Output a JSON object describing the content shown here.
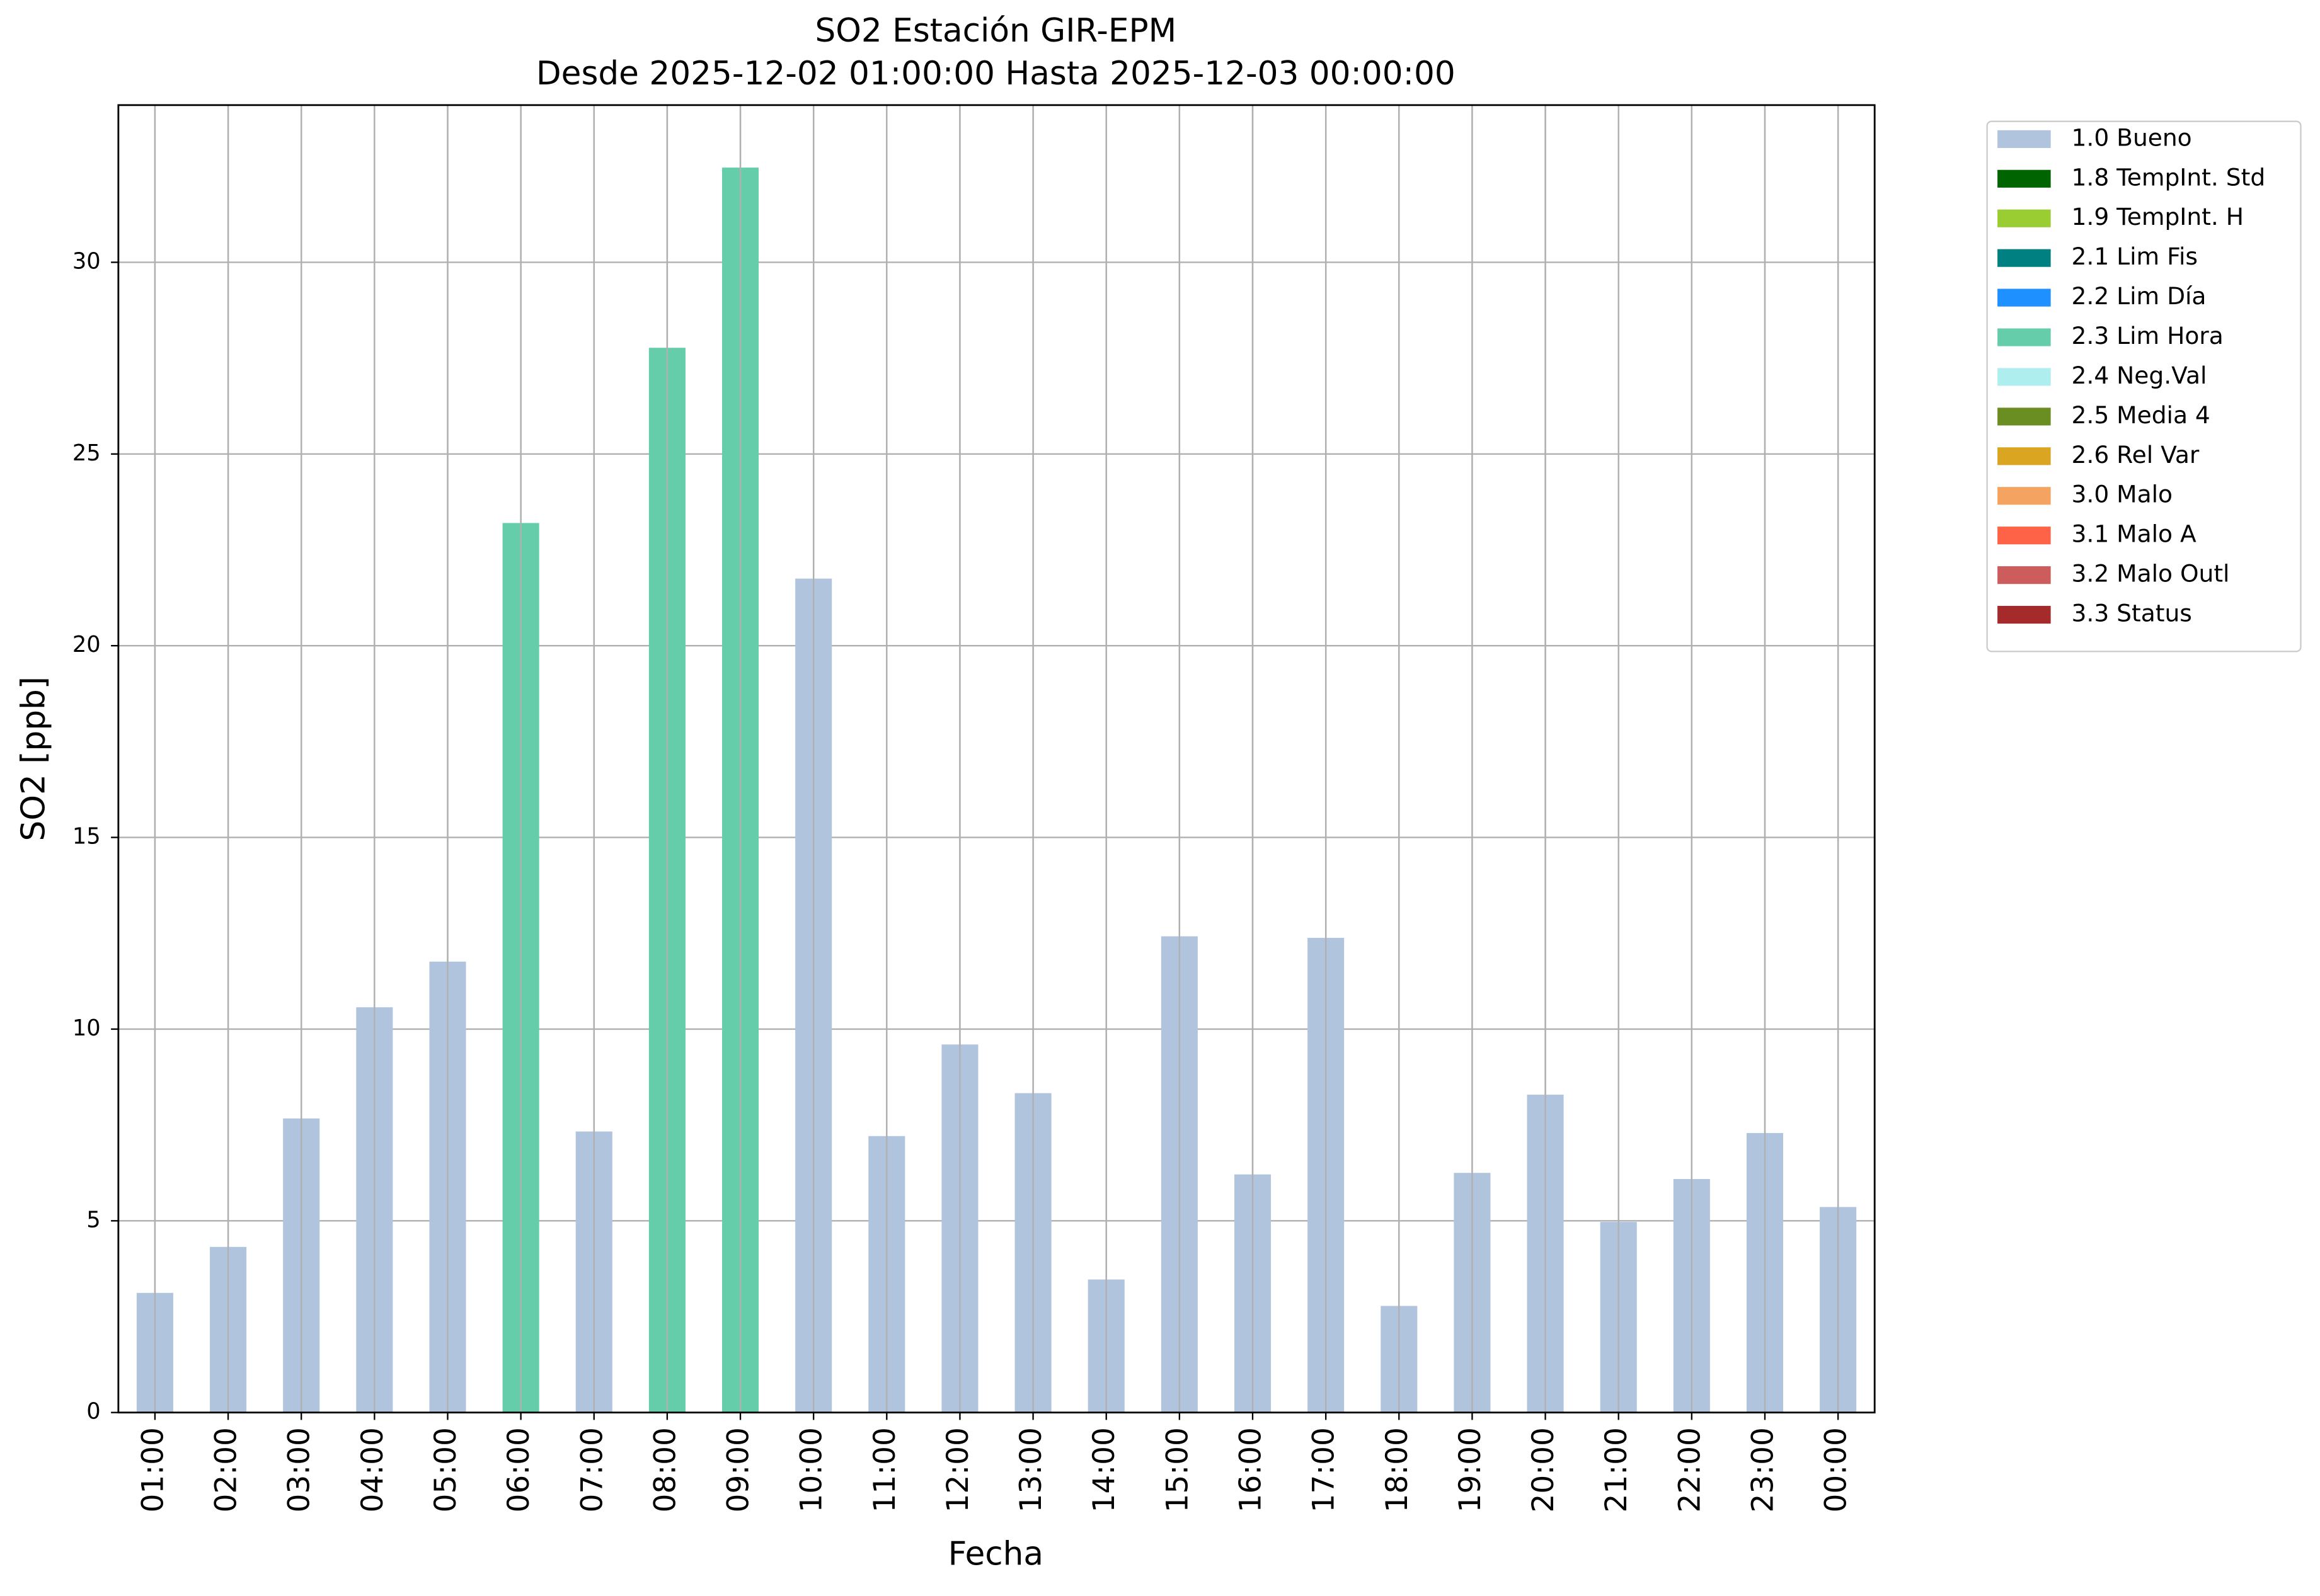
{
  "chart_data": {
    "type": "bar",
    "stacked": true,
    "title": "SO2 Estación GIR-EPM",
    "subtitle": "Desde 2025-12-02 01:00:00 Hasta 2025-12-03 00:00:00",
    "x_label": "Fecha",
    "y_label": "SO2 [ppb]",
    "categories": [
      "01:00",
      "02:00",
      "03:00",
      "04:00",
      "05:00",
      "06:00",
      "07:00",
      "08:00",
      "09:00",
      "10:00",
      "11:00",
      "12:00",
      "13:00",
      "14:00",
      "15:00",
      "16:00",
      "17:00",
      "18:00",
      "19:00",
      "20:00",
      "21:00",
      "22:00",
      "23:00",
      "00:00"
    ],
    "series": [
      {
        "name": "1.0 Bueno",
        "color": "#b0c4de",
        "values": [
          3.12,
          4.32,
          7.67,
          10.57,
          11.76,
          null,
          7.33,
          null,
          null,
          21.75,
          7.21,
          9.6,
          8.33,
          3.47,
          12.42,
          6.21,
          12.38,
          2.78,
          6.25,
          8.29,
          4.97,
          6.09,
          7.29,
          5.36
        ]
      },
      {
        "name": "1.8 TempInt. Std",
        "color": "#006400",
        "values": [
          null,
          null,
          null,
          null,
          null,
          null,
          null,
          null,
          null,
          null,
          null,
          null,
          null,
          null,
          null,
          null,
          null,
          null,
          null,
          null,
          null,
          null,
          null,
          null
        ]
      },
      {
        "name": "1.9 TempInt. H",
        "color": "#9acd32",
        "values": [
          null,
          null,
          null,
          null,
          null,
          null,
          null,
          null,
          null,
          null,
          null,
          null,
          null,
          null,
          null,
          null,
          null,
          null,
          null,
          null,
          null,
          null,
          null,
          null
        ]
      },
      {
        "name": "2.1 Lim Fis",
        "color": "#008080",
        "values": [
          null,
          null,
          null,
          null,
          null,
          null,
          null,
          null,
          null,
          null,
          null,
          null,
          null,
          null,
          null,
          null,
          null,
          null,
          null,
          null,
          null,
          null,
          null,
          null
        ]
      },
      {
        "name": "2.2 Lim Día",
        "color": "#1e90ff",
        "values": [
          null,
          null,
          null,
          null,
          null,
          null,
          null,
          null,
          null,
          null,
          null,
          null,
          null,
          null,
          null,
          null,
          null,
          null,
          null,
          null,
          null,
          null,
          null,
          null
        ]
      },
      {
        "name": "2.3 Lim Hora",
        "color": "#66cdaa",
        "values": [
          null,
          null,
          null,
          null,
          null,
          23.2,
          null,
          27.77,
          32.47,
          null,
          null,
          null,
          null,
          null,
          null,
          null,
          null,
          null,
          null,
          null,
          null,
          null,
          null,
          null
        ]
      },
      {
        "name": "2.4 Neg.Val",
        "color": "#afeeee",
        "values": [
          null,
          null,
          null,
          null,
          null,
          null,
          null,
          null,
          null,
          null,
          null,
          null,
          null,
          null,
          null,
          null,
          null,
          null,
          null,
          null,
          null,
          null,
          null,
          null
        ]
      },
      {
        "name": "2.5 Media 4",
        "color": "#6b8e23",
        "values": [
          null,
          null,
          null,
          null,
          null,
          null,
          null,
          null,
          null,
          null,
          null,
          null,
          null,
          null,
          null,
          null,
          null,
          null,
          null,
          null,
          null,
          null,
          null,
          null
        ]
      },
      {
        "name": "2.6 Rel Var",
        "color": "#daa520",
        "values": [
          null,
          null,
          null,
          null,
          null,
          null,
          null,
          null,
          null,
          null,
          null,
          null,
          null,
          null,
          null,
          null,
          null,
          null,
          null,
          null,
          null,
          null,
          null,
          null
        ]
      },
      {
        "name": "3.0 Malo",
        "color": "#f4a460",
        "values": [
          null,
          null,
          null,
          null,
          null,
          null,
          null,
          null,
          null,
          null,
          null,
          null,
          null,
          null,
          null,
          null,
          null,
          null,
          null,
          null,
          null,
          null,
          null,
          null
        ]
      },
      {
        "name": "3.1 Malo A",
        "color": "#ff6347",
        "values": [
          null,
          null,
          null,
          null,
          null,
          null,
          null,
          null,
          null,
          null,
          null,
          null,
          null,
          null,
          null,
          null,
          null,
          null,
          null,
          null,
          null,
          null,
          null,
          null
        ]
      },
      {
        "name": "3.2 Malo Outl",
        "color": "#cd5c5c",
        "values": [
          null,
          null,
          null,
          null,
          null,
          null,
          null,
          null,
          null,
          null,
          null,
          null,
          null,
          null,
          null,
          null,
          null,
          null,
          null,
          null,
          null,
          null,
          null,
          null
        ]
      },
      {
        "name": "3.3 Status",
        "color": "#a52a2a",
        "values": [
          null,
          null,
          null,
          null,
          null,
          null,
          null,
          null,
          null,
          null,
          null,
          null,
          null,
          null,
          null,
          null,
          null,
          null,
          null,
          null,
          null,
          null,
          null,
          null
        ]
      }
    ],
    "ylim": [
      0,
      34.1
    ],
    "yticks": [
      0,
      5,
      10,
      15,
      20,
      25,
      30
    ],
    "grid": true,
    "legend": "outside-upper-right"
  }
}
